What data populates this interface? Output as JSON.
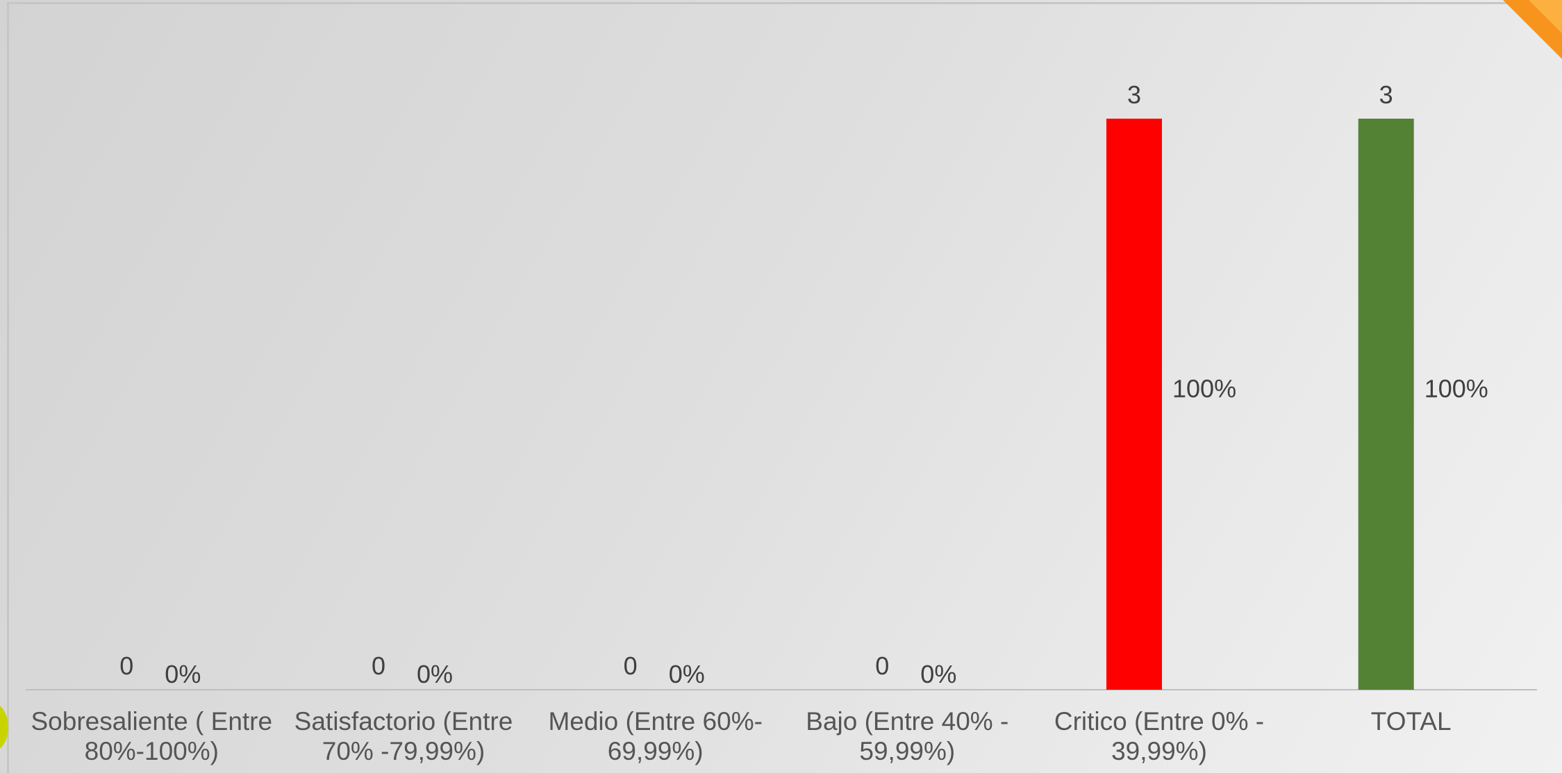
{
  "chart_data": {
    "type": "bar",
    "title": "",
    "xlabel": "",
    "ylabel": "",
    "ylim": [
      0,
      3
    ],
    "grid": false,
    "legend": "none",
    "categories": [
      [
        "Sobresaliente  ( Entre",
        "80%-100%)"
      ],
      [
        "Satisfactorio (Entre",
        "70% -79,99%)"
      ],
      [
        "Medio (Entre 60%-",
        "69,99%)"
      ],
      [
        "Bajo (Entre 40% -",
        "59,99%)"
      ],
      [
        "Critico (Entre 0% -",
        "39,99%)"
      ],
      [
        "TOTAL"
      ]
    ],
    "series": [
      {
        "values": [
          0,
          0,
          0,
          0,
          3,
          3
        ],
        "labels": [
          "0",
          "0",
          "0",
          "0",
          "3",
          "3"
        ],
        "colors": [
          "#ff0000",
          "#ff0000",
          "#ff0000",
          "#ff0000",
          "#ff0000",
          "#548235"
        ]
      },
      {
        "values": [
          0,
          0,
          0,
          0,
          1,
          1
        ],
        "labels": [
          "0%",
          "0%",
          "0%",
          "0%",
          "100%",
          "100%"
        ]
      }
    ]
  },
  "colors": {
    "critico_bar": "#ff0000",
    "total_bar": "#548235",
    "accent_orange": "#f7941d",
    "accent_lime": "#c8d400"
  }
}
